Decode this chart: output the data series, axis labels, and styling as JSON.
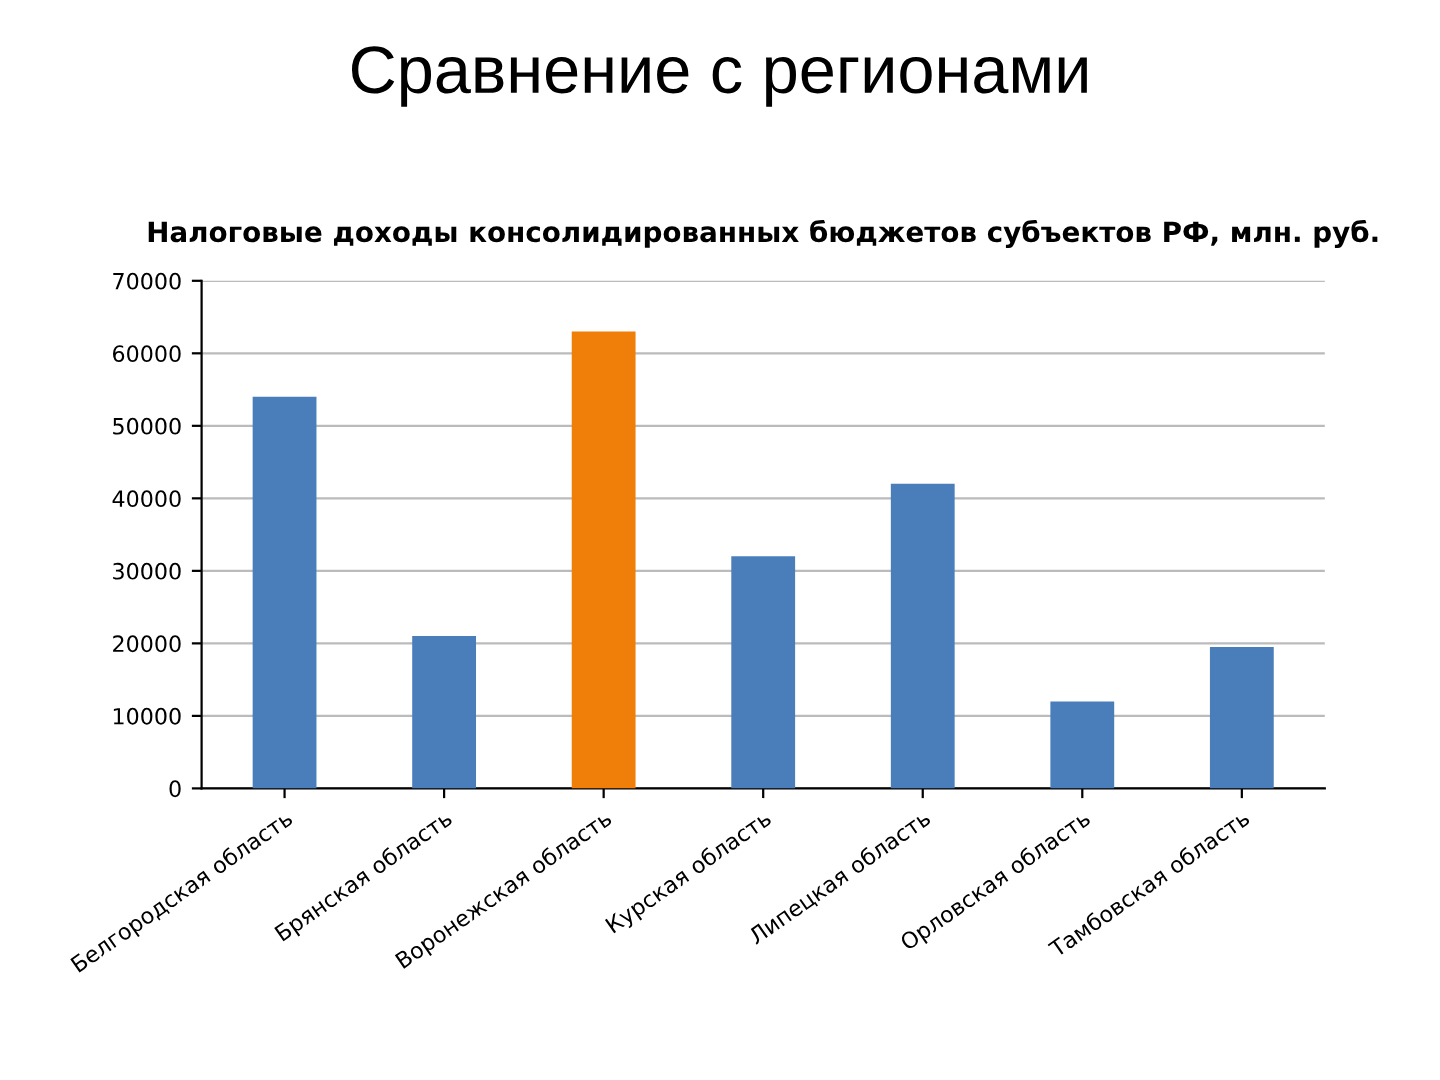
{
  "chart_data": {
    "type": "bar",
    "title": "Сравнение с регионами",
    "subtitle": "Налоговые доходы консолидированных бюджетов субъектов РФ, млн. руб.",
    "categories": [
      "Белгородская область",
      "Брянская область",
      "Воронежская область",
      "Курская область",
      "Липецкая область",
      "Орловская область",
      "Тамбовская область"
    ],
    "values": [
      54000,
      21000,
      63000,
      32000,
      42000,
      12000,
      19500
    ],
    "colors": [
      "#4a7ebb",
      "#4a7ebb",
      "#f07f09",
      "#4a7ebb",
      "#4a7ebb",
      "#4a7ebb",
      "#4a7ebb"
    ],
    "ylim": [
      0,
      70000
    ],
    "yticks": [
      0,
      10000,
      20000,
      30000,
      40000,
      50000,
      60000,
      70000
    ],
    "grid": "y",
    "legend": false
  }
}
